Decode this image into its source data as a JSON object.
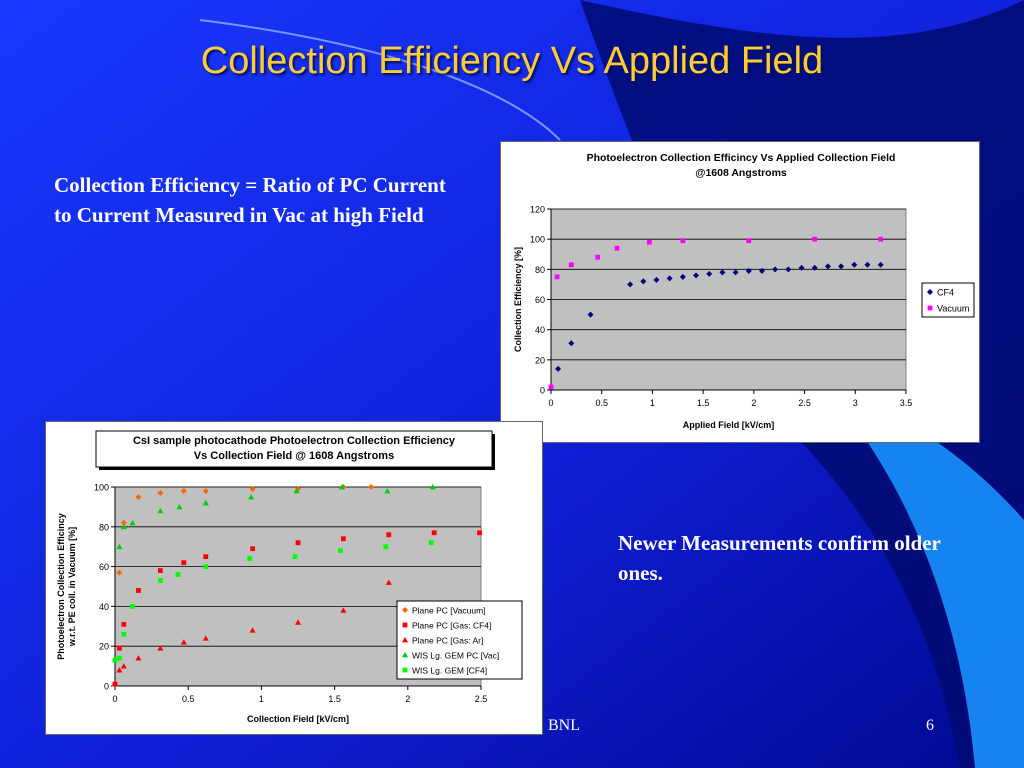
{
  "slide": {
    "title": "Collection Efficiency Vs Applied Field",
    "text_left": "Collection Efficiency = Ratio of PC Current to Current Measured in Vac at high Field",
    "text_right": "Newer Measurements confirm older ones.",
    "footer_left": "BNL",
    "page_number": "6",
    "colors": {
      "bg_top": "#1830ff",
      "bg_bottom": "#000890",
      "title": "#ffcc33",
      "text": "#ffffff",
      "plot_area": "#c0c0c0"
    }
  },
  "chart_data": [
    {
      "type": "scatter",
      "title": "Photoelectron Collection Efficincy Vs Applied Collection Field @1608 Angstroms",
      "title_lines": [
        "Photoelectron Collection Efficincy Vs Applied Collection Field",
        "@1608 Angstroms"
      ],
      "xlabel": "Applied Field [kV/cm]",
      "ylabel": "Collection Efficiency [%]",
      "xlim": [
        0,
        3.5
      ],
      "ylim": [
        0,
        120
      ],
      "xticks": [
        "0",
        "0.5",
        "1",
        "1.5",
        "2",
        "2.5",
        "3",
        "3.5"
      ],
      "yticks": [
        "0",
        "20",
        "40",
        "60",
        "80",
        "100",
        "120"
      ],
      "grid": true,
      "legend_position": "right",
      "series": [
        {
          "name": "CF4",
          "color": "#000080",
          "marker": "diamond",
          "points": [
            [
              0.07,
              14
            ],
            [
              0.2,
              31
            ],
            [
              0.39,
              50
            ],
            [
              0.78,
              70
            ],
            [
              0.91,
              72
            ],
            [
              1.04,
              73
            ],
            [
              1.17,
              74
            ],
            [
              1.3,
              75
            ],
            [
              1.43,
              76
            ],
            [
              1.56,
              77
            ],
            [
              1.69,
              78
            ],
            [
              1.82,
              78
            ],
            [
              1.95,
              79
            ],
            [
              2.08,
              79
            ],
            [
              2.21,
              80
            ],
            [
              2.34,
              80
            ],
            [
              2.47,
              81
            ],
            [
              2.6,
              81
            ],
            [
              2.73,
              82
            ],
            [
              2.86,
              82
            ],
            [
              2.99,
              83
            ],
            [
              3.12,
              83
            ],
            [
              3.25,
              83
            ]
          ]
        },
        {
          "name": "Vacuum",
          "color": "#ff00ff",
          "marker": "square",
          "points": [
            [
              0,
              2
            ],
            [
              0.06,
              75
            ],
            [
              0.2,
              83
            ],
            [
              0.46,
              88
            ],
            [
              0.65,
              94
            ],
            [
              0.97,
              98
            ],
            [
              1.3,
              99
            ],
            [
              1.95,
              99
            ],
            [
              2.6,
              100
            ],
            [
              3.25,
              100
            ]
          ]
        }
      ]
    },
    {
      "type": "scatter",
      "title": "CsI sample photocathode Photoelectron Collection Efficiency Vs Collection Field @ 1608 Angstroms",
      "title_lines": [
        "CsI sample photocathode Photoelectron Collection Efficiency",
        "Vs Collection Field @ 1608 Angstroms"
      ],
      "xlabel": "Collection Field [kV/cm]",
      "ylabel": "Photoelectron Collection Efficincy w.r.t. PE coll. in Vacuum [%]",
      "ylabel_lines": [
        "Photoelectron Collection Efficincy",
        "w.r.t. PE coll. in Vacuum [%]"
      ],
      "xlim": [
        0,
        2.5
      ],
      "ylim": [
        0,
        100
      ],
      "xticks": [
        "0",
        "0.5",
        "1",
        "1.5",
        "2",
        "2.5"
      ],
      "yticks": [
        "0",
        "20",
        "40",
        "60",
        "80",
        "100"
      ],
      "grid": true,
      "legend_position": "bottom-right",
      "series": [
        {
          "name": "Plane PC [Vacuum]",
          "color": "#ff6600",
          "marker": "diamond",
          "points": [
            [
              0,
              1
            ],
            [
              0.03,
              57
            ],
            [
              0.06,
              82
            ],
            [
              0.16,
              95
            ],
            [
              0.31,
              97
            ],
            [
              0.47,
              98
            ],
            [
              0.62,
              98
            ],
            [
              0.94,
              99
            ],
            [
              1.25,
              99
            ],
            [
              1.56,
              100
            ],
            [
              1.75,
              100
            ]
          ]
        },
        {
          "name": "Plane PC [Gas: CF4]",
          "color": "#ff0000",
          "marker": "square",
          "points": [
            [
              0,
              1
            ],
            [
              0.03,
              19
            ],
            [
              0.06,
              31
            ],
            [
              0.16,
              48
            ],
            [
              0.31,
              58
            ],
            [
              0.47,
              62
            ],
            [
              0.62,
              65
            ],
            [
              0.94,
              69
            ],
            [
              1.25,
              72
            ],
            [
              1.56,
              74
            ],
            [
              1.87,
              76
            ],
            [
              2.18,
              77
            ],
            [
              2.49,
              77
            ]
          ]
        },
        {
          "name": "Plane PC [Gas: Ar]",
          "color": "#ff0000",
          "marker": "triangle",
          "points": [
            [
              0,
              1
            ],
            [
              0.03,
              8
            ],
            [
              0.06,
              10
            ],
            [
              0.16,
              14
            ],
            [
              0.31,
              19
            ],
            [
              0.47,
              22
            ],
            [
              0.62,
              24
            ],
            [
              0.94,
              28
            ],
            [
              1.25,
              32
            ],
            [
              1.56,
              38
            ],
            [
              1.87,
              52
            ]
          ]
        },
        {
          "name": "WIS Lg. GEM PC [Vac]",
          "color": "#00cc00",
          "marker": "triangle",
          "points": [
            [
              0,
              13
            ],
            [
              0.03,
              70
            ],
            [
              0.06,
              80
            ],
            [
              0.12,
              82
            ],
            [
              0.31,
              88
            ],
            [
              0.44,
              90
            ],
            [
              0.62,
              92
            ],
            [
              0.93,
              95
            ],
            [
              1.24,
              98
            ],
            [
              1.55,
              100
            ],
            [
              1.86,
              98
            ],
            [
              2.17,
              100
            ]
          ]
        },
        {
          "name": "WIS Lg. GEM [CF4]",
          "color": "#00ff00",
          "marker": "square",
          "points": [
            [
              0,
              13
            ],
            [
              0.03,
              14
            ],
            [
              0.06,
              26
            ],
            [
              0.12,
              40
            ],
            [
              0.31,
              53
            ],
            [
              0.43,
              56
            ],
            [
              0.62,
              60
            ],
            [
              0.92,
              64
            ],
            [
              1.23,
              65
            ],
            [
              1.54,
              68
            ],
            [
              1.85,
              70
            ],
            [
              2.16,
              72
            ]
          ]
        }
      ]
    }
  ]
}
